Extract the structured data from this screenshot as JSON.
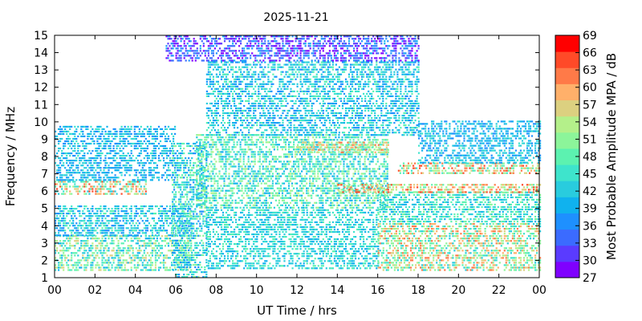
{
  "chart_data": {
    "type": "heatmap",
    "title": "2025-11-21",
    "xlabel": "UT Time / hrs",
    "ylabel": "Frequency / MHz",
    "colorbar_label": "Most Probable Amplitude MPA / dB",
    "xlim": [
      0,
      24
    ],
    "ylim": [
      1,
      15
    ],
    "x_ticks": [
      "00",
      "02",
      "04",
      "06",
      "08",
      "10",
      "12",
      "14",
      "16",
      "18",
      "20",
      "22",
      "00"
    ],
    "y_ticks": [
      "1",
      "2",
      "3",
      "4",
      "5",
      "6",
      "7",
      "8",
      "9",
      "10",
      "11",
      "12",
      "13",
      "14",
      "15"
    ],
    "colorbar_ticks": [
      "27",
      "30",
      "33",
      "36",
      "39",
      "42",
      "45",
      "48",
      "51",
      "54",
      "57",
      "60",
      "63",
      "66",
      "69"
    ],
    "colorscale": [
      "#7f00ff",
      "#5a3bff",
      "#3b6bff",
      "#1e90ff",
      "#10b2ee",
      "#29ccde",
      "#3ee4cc",
      "#5cf2b0",
      "#8cf59a",
      "#b4f08a",
      "#dcd080",
      "#ffb06a",
      "#ff7a48",
      "#ff4a28",
      "#ff0000"
    ],
    "zrange": [
      27,
      69
    ],
    "grid": false,
    "regions": [
      {
        "name": "night low band",
        "x": [
          0,
          6.8
        ],
        "y": [
          1.4,
          3.4
        ],
        "z": [
          39,
          57
        ]
      },
      {
        "name": "night mid band",
        "x": [
          0,
          6.8
        ],
        "y": [
          3.4,
          5.2
        ],
        "z": [
          36,
          48
        ]
      },
      {
        "name": "night 6MHz band",
        "x": [
          0,
          4.5
        ],
        "y": [
          5.8,
          6.6
        ],
        "z": [
          42,
          66
        ]
      },
      {
        "name": "night upper",
        "x": [
          0,
          6
        ],
        "y": [
          6.6,
          9.8
        ],
        "z": [
          36,
          45
        ]
      },
      {
        "name": "sunrise rise",
        "x": [
          5.8,
          7.5
        ],
        "y": [
          1,
          8.8
        ],
        "z": [
          36,
          51
        ]
      },
      {
        "name": "day main band",
        "x": [
          7,
          16.5
        ],
        "y": [
          5,
          9.2
        ],
        "z": [
          39,
          54
        ]
      },
      {
        "name": "day 8.5MHz band",
        "x": [
          12,
          16.5
        ],
        "y": [
          8.2,
          8.8
        ],
        "z": [
          48,
          63
        ]
      },
      {
        "name": "day high band",
        "x": [
          7.5,
          18
        ],
        "y": [
          9.2,
          13.5
        ],
        "z": [
          36,
          48
        ]
      },
      {
        "name": "day top band",
        "x": [
          5.5,
          18
        ],
        "y": [
          13.5,
          15
        ],
        "z": [
          27,
          39
        ]
      },
      {
        "name": "day low sparse",
        "x": [
          7.5,
          16
        ],
        "y": [
          1.5,
          5
        ],
        "z": [
          39,
          48
        ]
      },
      {
        "name": "evening low",
        "x": [
          16,
          24
        ],
        "y": [
          1.4,
          4.2
        ],
        "z": [
          42,
          63
        ]
      },
      {
        "name": "evening mid",
        "x": [
          16,
          24
        ],
        "y": [
          4.2,
          6
        ],
        "z": [
          39,
          51
        ]
      },
      {
        "name": "evening 6MHz",
        "x": [
          14,
          24
        ],
        "y": [
          5.9,
          6.4
        ],
        "z": [
          48,
          66
        ]
      },
      {
        "name": "evening 7MHz",
        "x": [
          17,
          24
        ],
        "y": [
          7,
          7.6
        ],
        "z": [
          45,
          66
        ]
      },
      {
        "name": "evening upper",
        "x": [
          18,
          24
        ],
        "y": [
          7.6,
          10
        ],
        "z": [
          36,
          45
        ]
      }
    ]
  }
}
